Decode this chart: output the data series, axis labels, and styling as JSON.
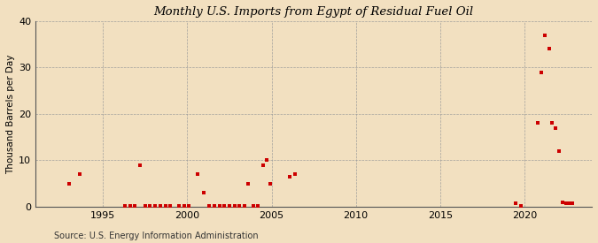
{
  "title": "Monthly U.S. Imports from Egypt of Residual Fuel Oil",
  "ylabel": "Thousand Barrels per Day",
  "source": "Source: U.S. Energy Information Administration",
  "background_color": "#f2e0c0",
  "plot_background_color": "#f2e0c0",
  "marker_color": "#cc0000",
  "marker_size": 3.5,
  "ylim": [
    0,
    40
  ],
  "yticks": [
    0,
    10,
    20,
    30,
    40
  ],
  "xlim": [
    1991.0,
    2024.0
  ],
  "xticks": [
    1995,
    2000,
    2005,
    2010,
    2015,
    2020
  ],
  "data_points": [
    [
      1993.0,
      5.0
    ],
    [
      1993.6,
      7.0
    ],
    [
      1997.2,
      9.0
    ],
    [
      1996.3,
      0.2
    ],
    [
      1996.6,
      0.2
    ],
    [
      1996.9,
      0.2
    ],
    [
      1997.5,
      0.2
    ],
    [
      1997.8,
      0.2
    ],
    [
      1998.1,
      0.2
    ],
    [
      1998.4,
      0.2
    ],
    [
      1998.7,
      0.2
    ],
    [
      1999.0,
      0.2
    ],
    [
      1999.5,
      0.2
    ],
    [
      1999.8,
      0.2
    ],
    [
      2000.1,
      0.2
    ],
    [
      2000.6,
      7.0
    ],
    [
      2001.0,
      3.0
    ],
    [
      2001.3,
      0.2
    ],
    [
      2001.6,
      0.2
    ],
    [
      2001.9,
      0.2
    ],
    [
      2002.2,
      0.2
    ],
    [
      2002.5,
      0.2
    ],
    [
      2002.8,
      0.2
    ],
    [
      2003.1,
      0.2
    ],
    [
      2003.4,
      0.2
    ],
    [
      2003.6,
      5.0
    ],
    [
      2003.9,
      0.2
    ],
    [
      2004.2,
      0.2
    ],
    [
      2004.5,
      9.0
    ],
    [
      2004.7,
      10.0
    ],
    [
      2004.9,
      5.0
    ],
    [
      2006.1,
      6.5
    ],
    [
      2006.4,
      7.0
    ],
    [
      2019.5,
      0.8
    ],
    [
      2019.8,
      0.2
    ],
    [
      2020.8,
      18.0
    ],
    [
      2021.0,
      29.0
    ],
    [
      2021.2,
      37.0
    ],
    [
      2021.45,
      34.0
    ],
    [
      2021.65,
      18.0
    ],
    [
      2021.85,
      17.0
    ],
    [
      2022.05,
      12.0
    ],
    [
      2022.25,
      1.0
    ],
    [
      2022.45,
      0.8
    ],
    [
      2022.65,
      0.8
    ],
    [
      2022.85,
      0.8
    ]
  ]
}
